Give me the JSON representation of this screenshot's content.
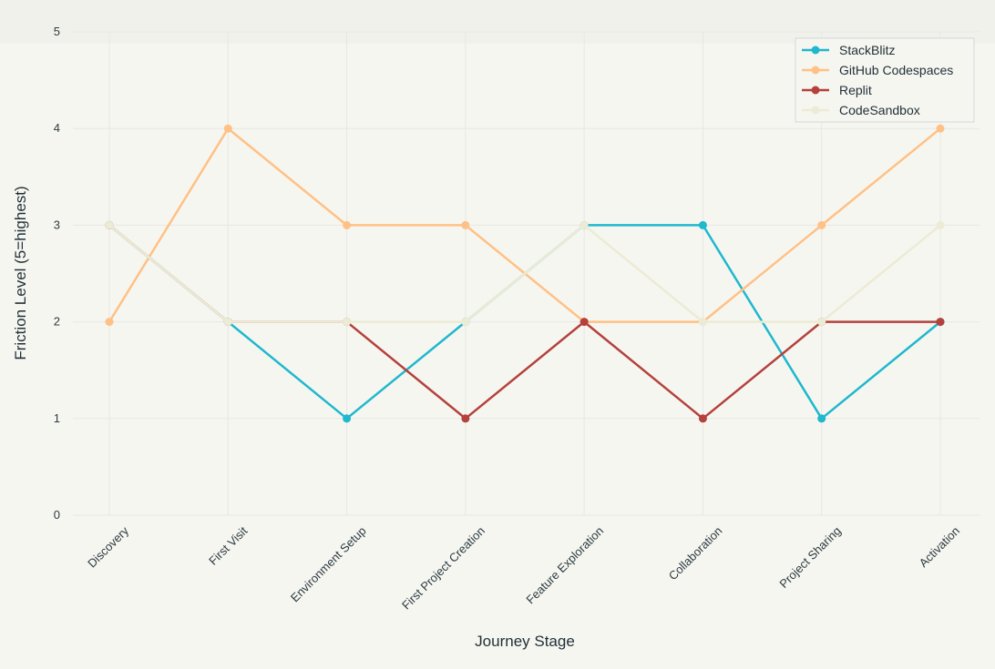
{
  "chart_data": {
    "type": "line",
    "title": "",
    "xlabel": "Journey Stage",
    "ylabel": "Friction Level (5=highest)",
    "ylim": [
      0,
      5
    ],
    "yticks": [
      0,
      1,
      2,
      3,
      4,
      5
    ],
    "grid": true,
    "legend_position": "top-right",
    "categories": [
      "Discovery",
      "First Visit",
      "Environment Setup",
      "First Project Creation",
      "Feature Exploration",
      "Collaboration",
      "Project Sharing",
      "Activation"
    ],
    "series": [
      {
        "name": "StackBlitz",
        "color": "#1fb8cd",
        "values": [
          3,
          2,
          1,
          2,
          3,
          3,
          1,
          2
        ]
      },
      {
        "name": "GitHub Codespaces",
        "color": "#ffc185",
        "values": [
          2,
          4,
          3,
          3,
          2,
          2,
          3,
          4
        ]
      },
      {
        "name": "Replit",
        "color": "#b4413c",
        "values": [
          3,
          2,
          2,
          1,
          2,
          1,
          2,
          2
        ]
      },
      {
        "name": "CodeSandbox",
        "color": "#ecebd5",
        "values": [
          3,
          2,
          2,
          2,
          3,
          2,
          2,
          3
        ]
      }
    ]
  }
}
